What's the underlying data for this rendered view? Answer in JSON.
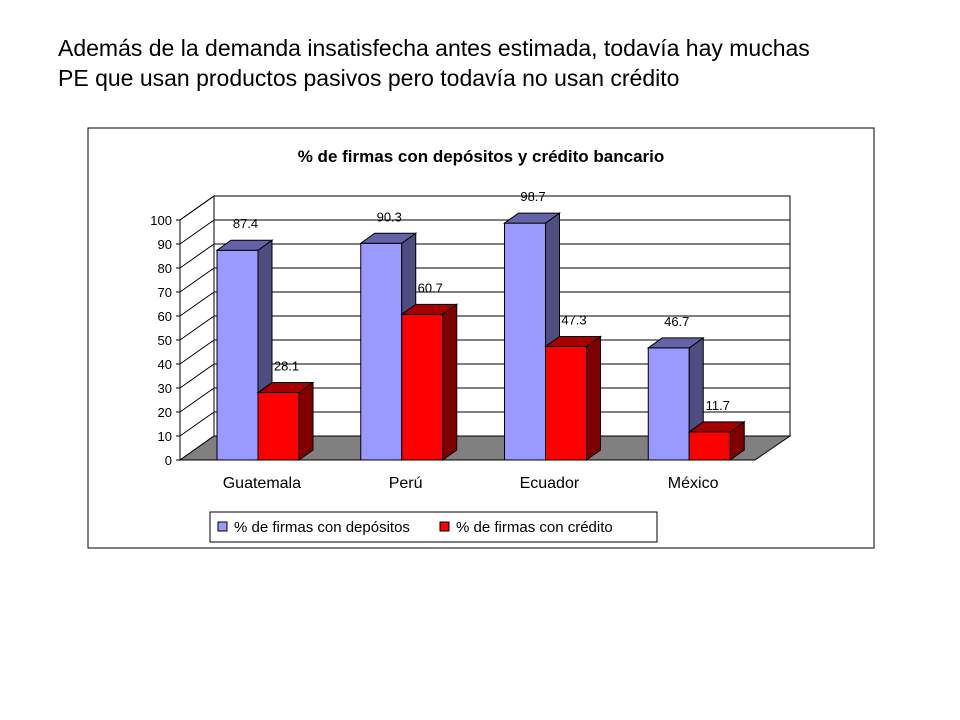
{
  "slide": {
    "line1": "Además de la demanda insatisfecha antes estimada, todavía hay muchas",
    "line2": "PE que usan productos pasivos pero todavía no usan crédito"
  },
  "chart_data": {
    "type": "bar",
    "title": "% de firmas con depósitos y crédito bancario",
    "categories": [
      "Guatemala",
      "Perú",
      "Ecuador",
      "México"
    ],
    "series": [
      {
        "name": "% de firmas con depósitos",
        "values": [
          87.4,
          90.3,
          98.7,
          46.7
        ],
        "color": "#9999ff"
      },
      {
        "name": "% de firmas con crédito",
        "values": [
          28.1,
          60.7,
          47.3,
          11.7
        ],
        "color": "#ff0000"
      }
    ],
    "ylim": [
      0,
      100
    ],
    "yticks": [
      "0",
      "10",
      "20",
      "30",
      "40",
      "50",
      "60",
      "70",
      "80",
      "90",
      "100"
    ],
    "data_labels": [
      "87.4",
      "90.3",
      "98.7",
      "46.7",
      "28.1",
      "60.7",
      "47.3",
      "11.7"
    ],
    "grid": true,
    "three_d": true,
    "legend_position": "bottom",
    "floor_color": "#808080"
  }
}
